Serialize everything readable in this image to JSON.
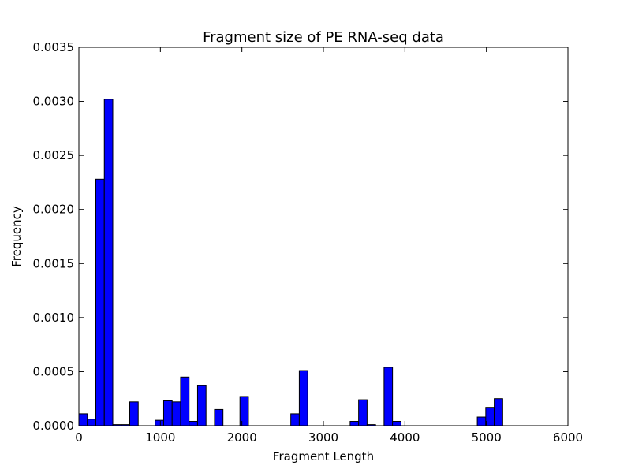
{
  "chart_data": {
    "type": "bar",
    "title": "Fragment size of PE RNA-seq data",
    "xlabel": "Fragment Length",
    "ylabel": "Frequency",
    "xlim": [
      0,
      6000
    ],
    "ylim": [
      0,
      0.0035
    ],
    "xticks": [
      0,
      1000,
      2000,
      3000,
      4000,
      5000,
      6000
    ],
    "xtick_labels": [
      "0",
      "1000",
      "2000",
      "3000",
      "4000",
      "5000",
      "6000"
    ],
    "yticks": [
      0,
      0.0005,
      0.001,
      0.0015,
      0.002,
      0.0025,
      0.003,
      0.0035
    ],
    "ytick_labels": [
      "0.0000",
      "0.0005",
      "0.0010",
      "0.0015",
      "0.0020",
      "0.0025",
      "0.0030",
      "0.0035"
    ],
    "grid": false,
    "bar_color": "#0000ff",
    "bar_edge_color": "#000000",
    "bin_width": 104,
    "bin_start": 0,
    "values": [
      0.00011,
      6e-05,
      0.00228,
      0.00302,
      1e-05,
      1e-05,
      0.00022,
      0.0,
      0.0,
      5e-05,
      0.00023,
      0.00022,
      0.00045,
      4e-05,
      0.00037,
      0.0,
      0.00015,
      0.0,
      0.0,
      0.00027,
      0.0,
      0.0,
      0.0,
      0.0,
      0.0,
      0.00011,
      0.00051,
      0.0,
      0.0,
      0.0,
      0.0,
      0.0,
      4e-05,
      0.00024,
      1e-05,
      0.0,
      0.00054,
      4e-05,
      0.0,
      0.0,
      0.0,
      0.0,
      0.0,
      0.0,
      0.0,
      0.0,
      0.0,
      8e-05,
      0.00017,
      0.00025
    ]
  }
}
